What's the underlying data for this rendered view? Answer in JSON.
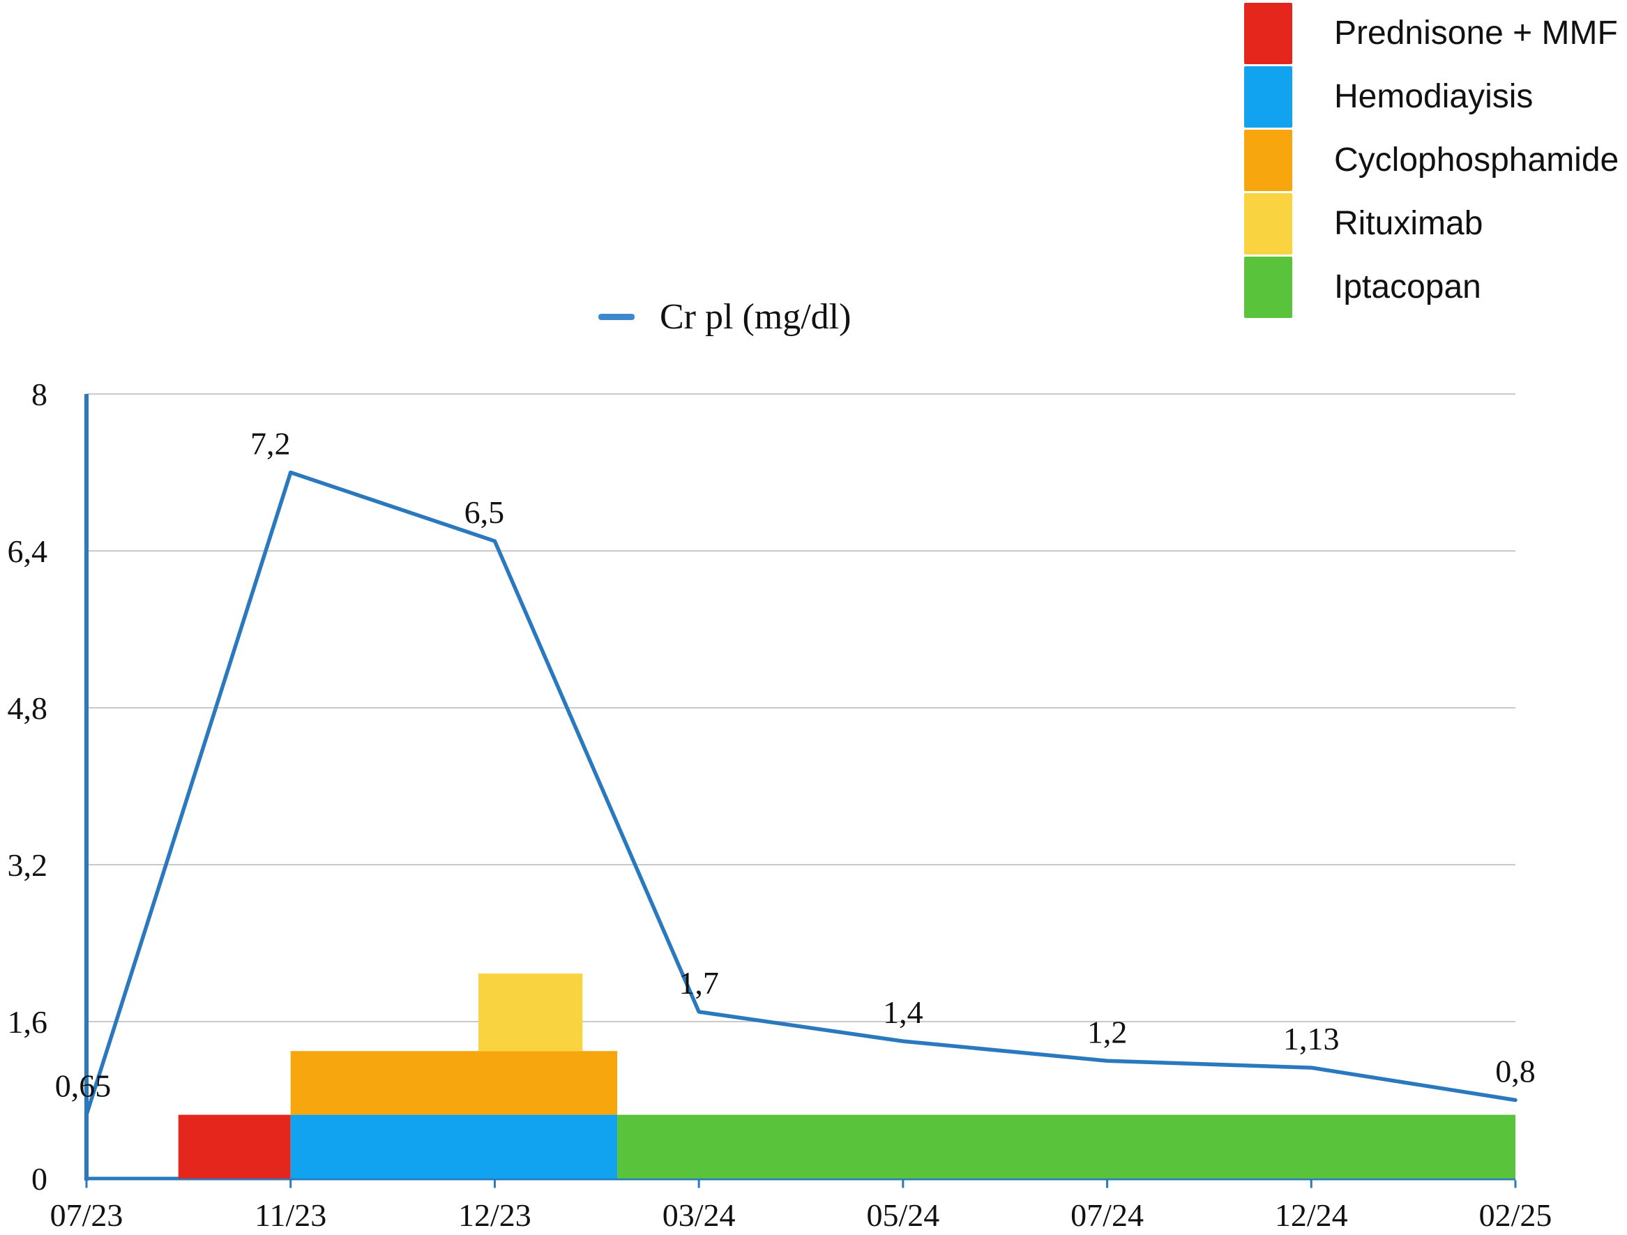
{
  "series_legend": {
    "label": "Cr pl (mg/dl)",
    "marker_color": "#3d87cc"
  },
  "treatment_legend": {
    "items": [
      {
        "label": "Prednisone + MMF",
        "color": "#e5261d"
      },
      {
        "label": "Hemodiayisis",
        "color": "#12a3f0"
      },
      {
        "label": "Cyclophosphamide",
        "color": "#f7a70d"
      },
      {
        "label": "Rituximab",
        "color": "#f9d340"
      },
      {
        "label": "Iptacopan",
        "color": "#58c33b"
      }
    ]
  },
  "chart_data": {
    "type": "line",
    "title": "Cr pl (mg/dl)",
    "categories": [
      "07/23",
      "11/23",
      "12/23",
      "03/24",
      "05/24",
      "07/24",
      "12/24",
      "02/25"
    ],
    "series": [
      {
        "name": "Cr pl (mg/dl)",
        "color": "#2a79bf",
        "values": [
          0.65,
          7.2,
          6.5,
          1.7,
          1.4,
          1.2,
          1.13,
          0.8
        ],
        "point_labels": [
          "0,65",
          "7,2",
          "6,5",
          "1,7",
          "1,4",
          "1,2",
          "1,13",
          "0,8"
        ]
      }
    ],
    "xlabel": "",
    "ylabel": "",
    "ylim": [
      0,
      8
    ],
    "yticks": [
      {
        "value": 0,
        "label": "0"
      },
      {
        "value": 1.6,
        "label": "1,6"
      },
      {
        "value": 3.2,
        "label": "3,2"
      },
      {
        "value": 4.8,
        "label": "4,8"
      },
      {
        "value": 6.4,
        "label": "6,4"
      },
      {
        "value": 8,
        "label": "8"
      }
    ],
    "grid": true,
    "legend_position": "top-right",
    "grid_color": "#c9c9c9",
    "axis_color": "#2a79bf",
    "text_color": "#111111",
    "treatment_bars": [
      {
        "name": "Prednisone + MMF",
        "color": "#e5261d",
        "x0": 0.45,
        "x1": 1.0,
        "y0": 0,
        "y1": 0.65
      },
      {
        "name": "Hemodiayisis",
        "color": "#12a3f0",
        "x0": 1.0,
        "x1": 2.6,
        "y0": 0,
        "y1": 0.65
      },
      {
        "name": "Cyclophosphamide",
        "color": "#f7a70d",
        "x0": 1.0,
        "x1": 2.6,
        "y0": 0.65,
        "y1": 1.3
      },
      {
        "name": "Rituximab",
        "color": "#f9d340",
        "x0": 1.92,
        "x1": 2.43,
        "y0": 1.3,
        "y1": 2.09
      },
      {
        "name": "Iptacopan",
        "color": "#58c33b",
        "x0": 2.6,
        "x1": 7.0,
        "y0": 0,
        "y1": 0.65
      }
    ]
  }
}
